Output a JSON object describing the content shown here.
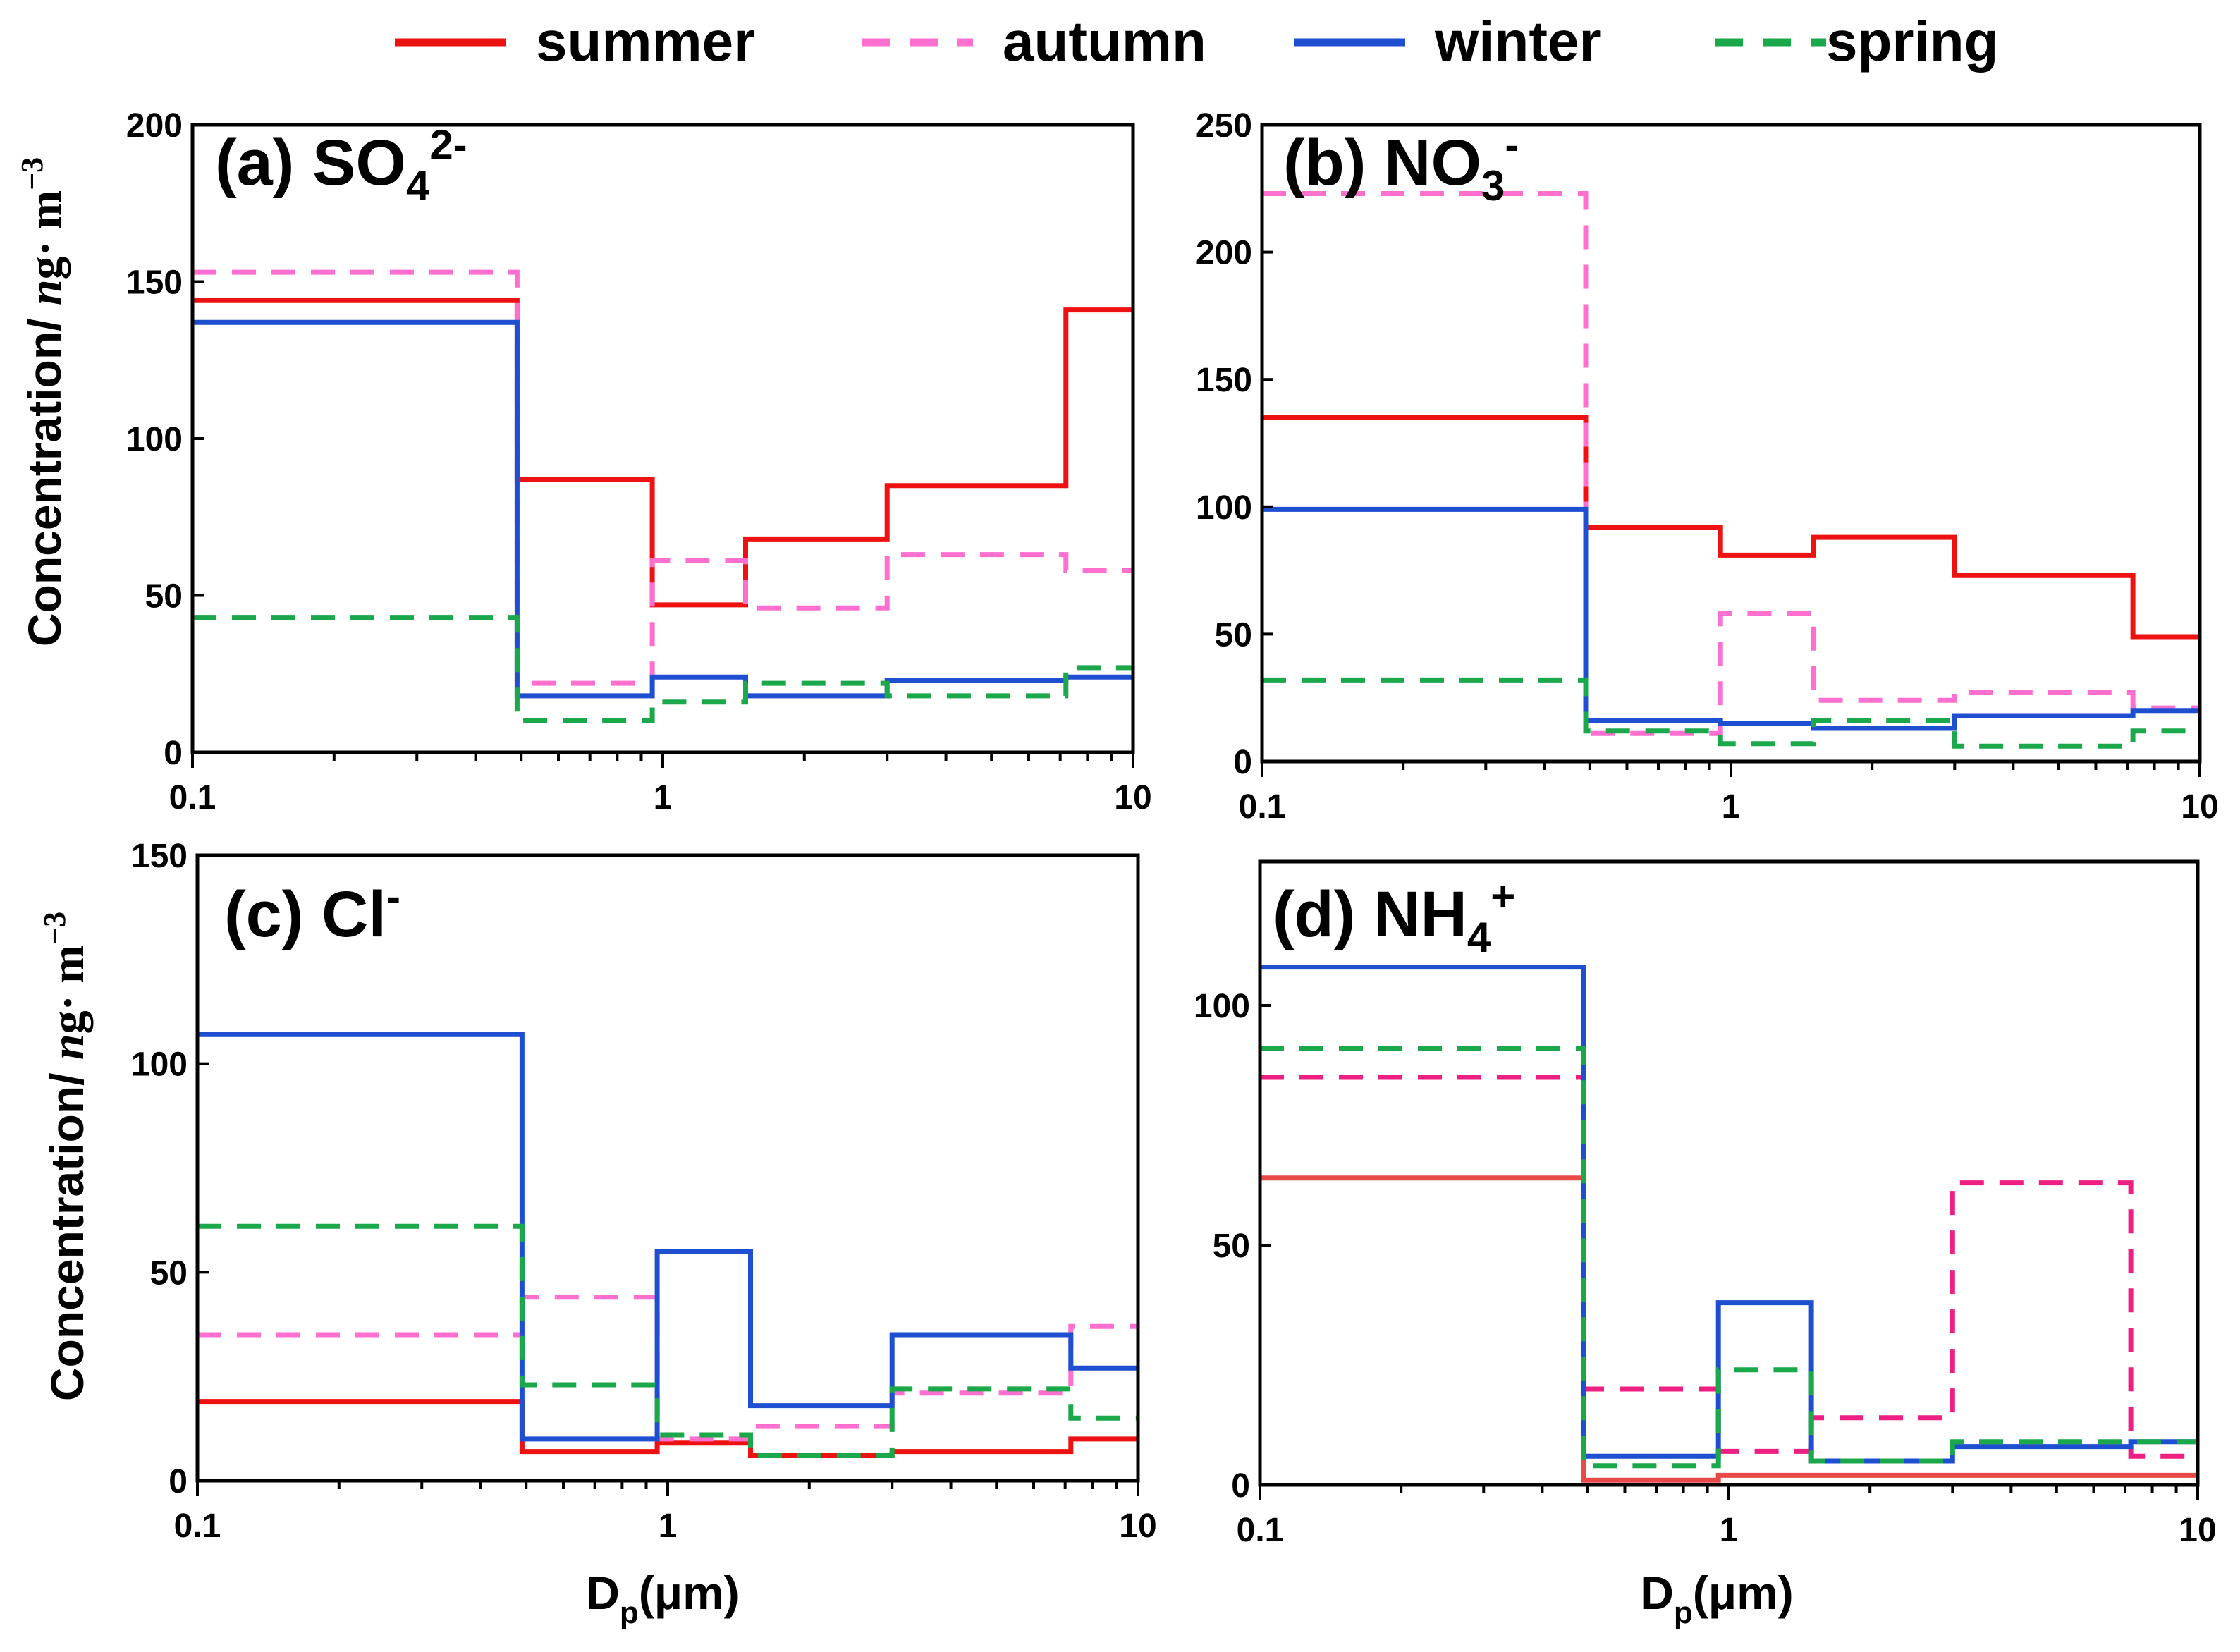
{
  "legend": [
    {
      "key": "summer",
      "label": "summer",
      "color": "#ee1111",
      "dashed": false
    },
    {
      "key": "autumn",
      "label": "autumn",
      "color": "#ff6fcf",
      "dashed": true
    },
    {
      "key": "winter",
      "label": "winter",
      "color": "#1f4fd1",
      "dashed": false
    },
    {
      "key": "spring",
      "label": "spring",
      "color": "#1aa84a",
      "dashed": true
    }
  ],
  "y_axis_label": {
    "prefix": "Concentration/ ",
    "italic": "n",
    "middle": "g· m",
    "sup": "−3"
  },
  "x_axis_label": {
    "main": "D",
    "sub": "p",
    "unit": "(μm)"
  },
  "chart_data": [
    {
      "type": "line",
      "id": "a",
      "title": {
        "prefix": "(a) SO",
        "sub": "4",
        "sup": "2-"
      },
      "xscale": "log",
      "xlim": [
        0.1,
        10
      ],
      "ylim": [
        0,
        200
      ],
      "xticks": [
        0.1,
        1,
        10
      ],
      "xtick_labels": [
        "0.1",
        "1",
        "10"
      ],
      "yticks": [
        0,
        50,
        100,
        150,
        200
      ],
      "ytick_labels": [
        "0",
        "50",
        "100",
        "150",
        "200"
      ],
      "bin_edges": [
        0.1,
        0.49,
        0.95,
        1.5,
        3.0,
        7.2,
        10
      ],
      "series": [
        {
          "name": "summer",
          "values": [
            144,
            87,
            47,
            68,
            85,
            141
          ]
        },
        {
          "name": "autumn",
          "values": [
            153,
            22,
            61,
            46,
            63,
            58
          ]
        },
        {
          "name": "winter",
          "values": [
            137,
            18,
            24,
            18,
            23,
            24
          ]
        },
        {
          "name": "spring",
          "values": [
            43,
            10,
            16,
            22,
            18,
            27
          ]
        }
      ]
    },
    {
      "type": "line",
      "id": "b",
      "title": {
        "prefix": "(b) NO",
        "sub": "3",
        "sup": "-"
      },
      "xscale": "log",
      "xlim": [
        0.1,
        10
      ],
      "ylim": [
        0,
        250
      ],
      "xticks": [
        0.1,
        1,
        10
      ],
      "xtick_labels": [
        "0.1",
        "1",
        "10"
      ],
      "yticks": [
        0,
        50,
        100,
        150,
        200,
        250
      ],
      "ytick_labels": [
        "0",
        "50",
        "100",
        "150",
        "200",
        "250"
      ],
      "bin_edges": [
        0.1,
        0.49,
        0.95,
        1.5,
        3.0,
        7.2,
        10
      ],
      "series": [
        {
          "name": "summer",
          "values": [
            135,
            92,
            81,
            88,
            73,
            49
          ]
        },
        {
          "name": "autumn",
          "values": [
            223,
            11,
            58,
            24,
            27,
            21
          ]
        },
        {
          "name": "winter",
          "values": [
            99,
            16,
            15,
            13,
            18,
            20
          ]
        },
        {
          "name": "spring",
          "values": [
            32,
            12,
            7,
            16,
            6,
            12
          ]
        }
      ]
    },
    {
      "type": "line",
      "id": "c",
      "title": {
        "prefix": "(c) Cl",
        "sub": "",
        "sup": "-"
      },
      "xscale": "log",
      "xlim": [
        0.1,
        10
      ],
      "ylim": [
        0,
        150
      ],
      "xticks": [
        0.1,
        1,
        10
      ],
      "xtick_labels": [
        "0.1",
        "1",
        "10"
      ],
      "yticks": [
        0,
        50,
        100,
        150
      ],
      "ytick_labels": [
        "0",
        "50",
        "100",
        "150"
      ],
      "bin_edges": [
        0.1,
        0.49,
        0.95,
        1.5,
        3.0,
        7.2,
        10
      ],
      "series": [
        {
          "name": "summer",
          "values": [
            19,
            7,
            9,
            6,
            7,
            10
          ]
        },
        {
          "name": "autumn",
          "values": [
            35,
            44,
            10,
            13,
            21,
            37
          ]
        },
        {
          "name": "winter",
          "values": [
            107,
            10,
            55,
            18,
            35,
            27
          ]
        },
        {
          "name": "spring",
          "values": [
            61,
            23,
            11,
            6,
            22,
            15
          ]
        }
      ]
    },
    {
      "type": "line",
      "id": "d",
      "title": {
        "prefix": "(d) NH",
        "sub": "4",
        "sup": "+"
      },
      "xscale": "log",
      "xlim": [
        0.1,
        10
      ],
      "ylim": [
        0,
        130
      ],
      "xticks": [
        0.1,
        1,
        10
      ],
      "xtick_labels": [
        "0.1",
        "1",
        "10"
      ],
      "yticks": [
        0,
        50,
        100
      ],
      "ytick_labels": [
        "0",
        "50",
        "100"
      ],
      "bin_edges": [
        0.1,
        0.49,
        0.95,
        1.5,
        3.0,
        7.2,
        10
      ],
      "series": [
        {
          "name": "summer",
          "values": [
            64,
            1,
            2,
            2,
            2,
            2
          ],
          "color": "#e84a4a"
        },
        {
          "name": "autumn",
          "values": [
            85,
            20,
            7,
            14,
            63,
            6
          ],
          "color": "#ee1f82"
        },
        {
          "name": "winter",
          "values": [
            108,
            6,
            38,
            5,
            8,
            9
          ]
        },
        {
          "name": "spring",
          "values": [
            91,
            4,
            24,
            5,
            9,
            9
          ]
        }
      ]
    }
  ]
}
